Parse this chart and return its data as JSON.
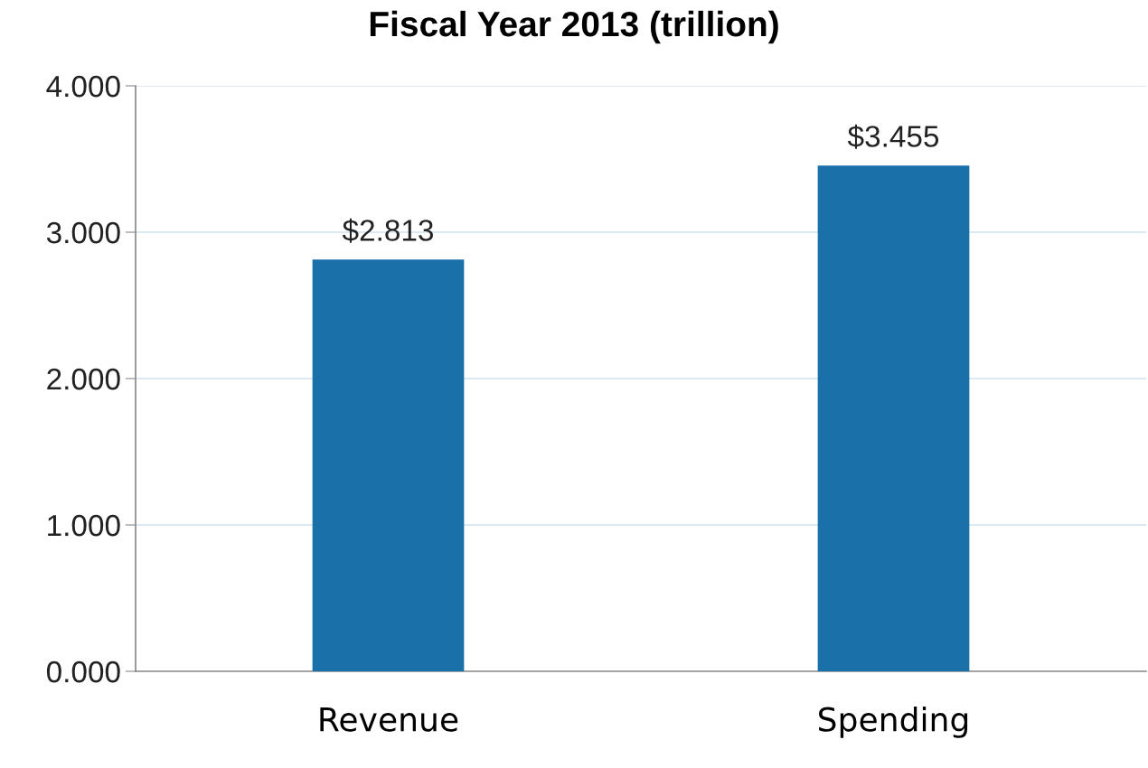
{
  "chart_data": {
    "type": "bar",
    "title": "Fiscal Year 2013 (trillion)",
    "categories": [
      "Revenue",
      "Spending"
    ],
    "values": [
      2.813,
      3.455
    ],
    "value_labels": [
      "$2.813",
      "$3.455"
    ],
    "color": "#1a70a8",
    "ylim": [
      0,
      4
    ],
    "yticks": [
      {
        "value": 0,
        "label": "0.000"
      },
      {
        "value": 1,
        "label": "1.000"
      },
      {
        "value": 2,
        "label": "2.000"
      },
      {
        "value": 3,
        "label": "3.000"
      },
      {
        "value": 4,
        "label": "4.000"
      }
    ],
    "grid": "y"
  }
}
